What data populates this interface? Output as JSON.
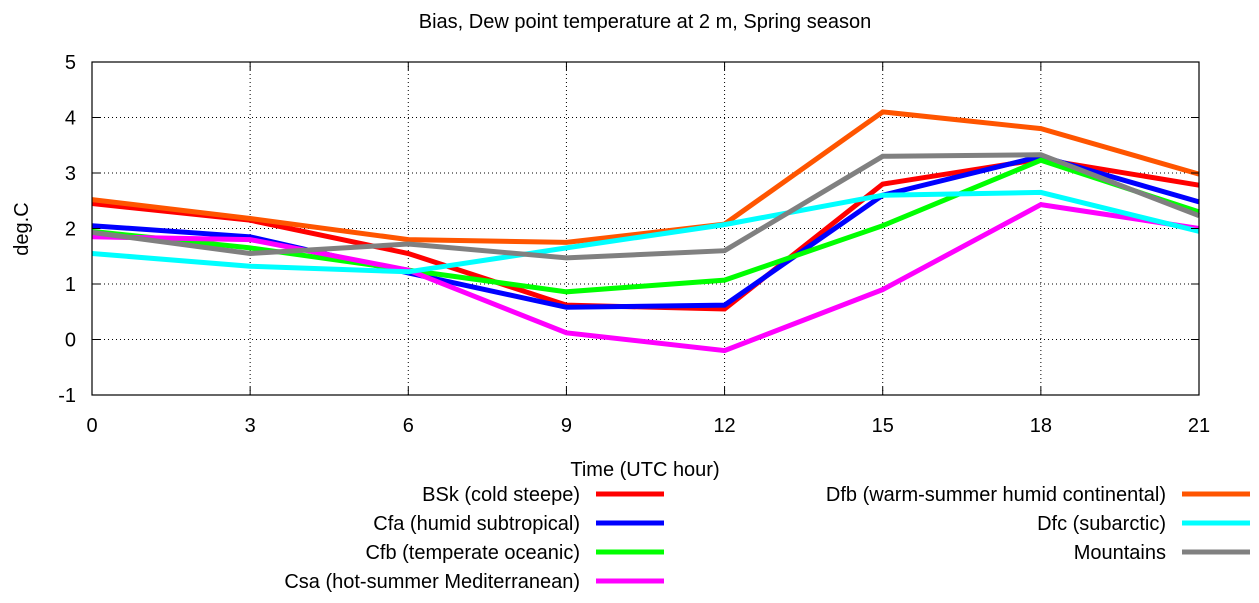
{
  "chart_data": {
    "type": "line",
    "title": "Bias, Dew point temperature at 2 m, Spring season",
    "xlabel": "Time (UTC hour)",
    "ylabel": "deg.C",
    "x": [
      0,
      3,
      6,
      9,
      12,
      15,
      18,
      21
    ],
    "xlim": [
      0,
      21
    ],
    "ylim": [
      -1,
      5
    ],
    "xticks": [
      "0",
      "3",
      "6",
      "9",
      "12",
      "15",
      "18",
      "21"
    ],
    "yticks": [
      "-1",
      "0",
      "1",
      "2",
      "3",
      "4",
      "5"
    ],
    "grid": true,
    "legend_position": "bottom",
    "series": [
      {
        "name": "BSk (cold steepe)",
        "color": "#ff0000",
        "values": [
          2.45,
          2.15,
          1.55,
          0.62,
          0.55,
          2.8,
          3.25,
          2.78
        ]
      },
      {
        "name": "Cfa (humid subtropical)",
        "color": "#0000ff",
        "values": [
          2.05,
          1.85,
          1.2,
          0.58,
          0.62,
          2.6,
          3.3,
          2.48
        ]
      },
      {
        "name": "Cfb (temperate oceanic)",
        "color": "#00ff00",
        "values": [
          1.95,
          1.65,
          1.25,
          0.86,
          1.07,
          2.05,
          3.23,
          2.3
        ]
      },
      {
        "name": "Csa (hot-summer Mediterranean)",
        "color": "#ff00ff",
        "values": [
          1.85,
          1.8,
          1.25,
          0.12,
          -0.2,
          0.9,
          2.43,
          2.0
        ]
      },
      {
        "name": "Dfb (warm-summer humid continental)",
        "color": "#ff5500",
        "values": [
          2.52,
          2.18,
          1.8,
          1.75,
          2.08,
          4.1,
          3.8,
          2.98
        ]
      },
      {
        "name": "Dfc (subarctic)",
        "color": "#00ffff",
        "values": [
          1.55,
          1.32,
          1.22,
          1.65,
          2.07,
          2.6,
          2.65,
          1.95
        ]
      },
      {
        "name": "Mountains",
        "color": "#808080",
        "values": [
          1.93,
          1.55,
          1.72,
          1.47,
          1.6,
          3.3,
          3.33,
          2.23
        ]
      }
    ]
  }
}
